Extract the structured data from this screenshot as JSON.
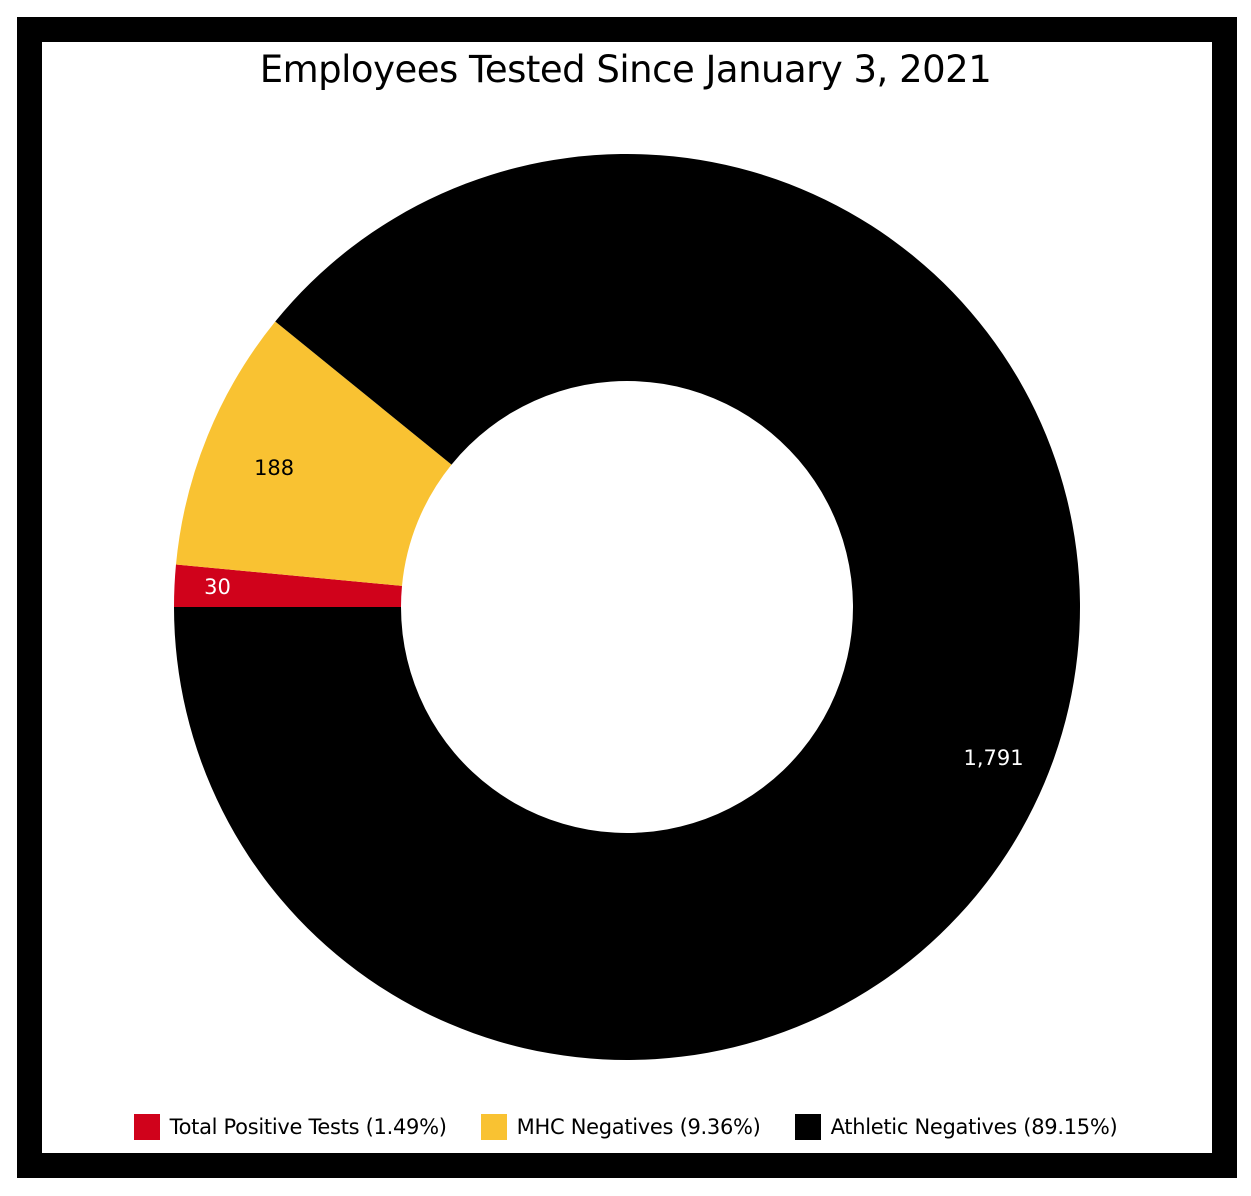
{
  "chart_data": {
    "type": "pie",
    "donut": true,
    "title": "Employees Tested Since January 3, 2021",
    "categories": [
      "Total Positive Tests (1.49%)",
      "MHC Negatives (9.36%)",
      "Athletic Negatives (89.15%)"
    ],
    "values": [
      30,
      188,
      1791
    ],
    "value_labels": [
      "30",
      "188",
      "1,791"
    ],
    "colors": [
      "#d0021b",
      "#f9c232",
      "#000000"
    ],
    "label_colors": [
      "#ffffff",
      "#000000",
      "#ffffff"
    ],
    "legend": "bottom",
    "start_direction": "left",
    "direction": "counterclockwise"
  }
}
